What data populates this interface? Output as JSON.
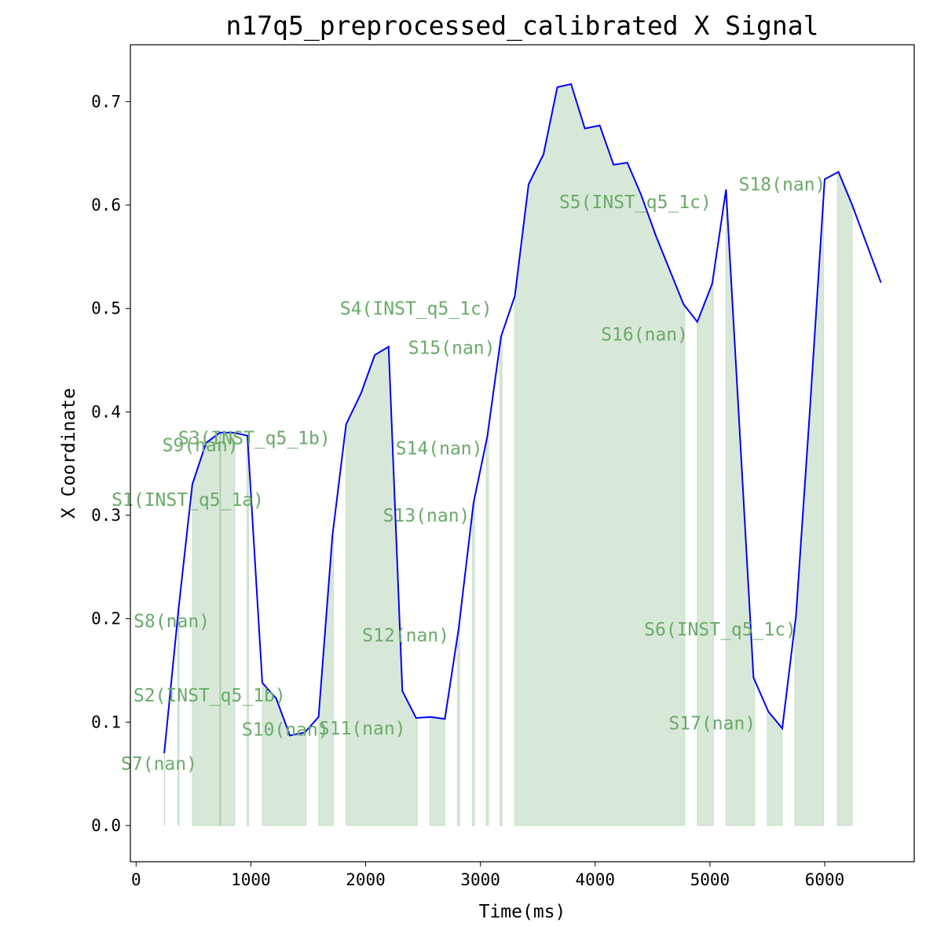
{
  "chart_data": {
    "type": "area",
    "title": "n17q5_preprocessed_calibrated X Signal",
    "xlabel": "Time(ms)",
    "ylabel": "X Coordinate",
    "xlim": [
      -50,
      6780
    ],
    "ylim": [
      -0.035,
      0.755
    ],
    "xticks": [
      0,
      1000,
      2000,
      3000,
      4000,
      5000,
      6000
    ],
    "yticks": [
      0.0,
      0.1,
      0.2,
      0.3,
      0.4,
      0.5,
      0.6,
      0.7
    ],
    "xtick_labels": [
      "0",
      "1000",
      "2000",
      "3000",
      "4000",
      "5000",
      "6000"
    ],
    "ytick_labels": [
      "0.0",
      "0.1",
      "0.2",
      "0.3",
      "0.4",
      "0.5",
      "0.6",
      "0.7"
    ],
    "line_color": "#0000ff",
    "fill_color": "#8fbc8f",
    "label_color": "#6aaa6a",
    "grid": false,
    "signal": {
      "x": [
        245,
        370,
        490,
        610,
        730,
        850,
        970,
        1100,
        1220,
        1340,
        1470,
        1590,
        1710,
        1830,
        1960,
        2080,
        2200,
        2320,
        2440,
        2570,
        2690,
        2810,
        2940,
        3060,
        3180,
        3300,
        3420,
        3550,
        3670,
        3790,
        3910,
        4040,
        4160,
        4280,
        4400,
        4530,
        4650,
        4770,
        4890,
        5020,
        5140,
        5260,
        5380,
        5510,
        5630,
        5750,
        5870,
        6000,
        6120,
        6240,
        6490
      ],
      "y": [
        0.07,
        0.21,
        0.33,
        0.37,
        0.38,
        0.38,
        0.377,
        0.138,
        0.123,
        0.087,
        0.09,
        0.105,
        0.28,
        0.388,
        0.418,
        0.455,
        0.463,
        0.13,
        0.104,
        0.105,
        0.103,
        0.19,
        0.312,
        0.376,
        0.473,
        0.512,
        0.62,
        0.649,
        0.714,
        0.717,
        0.674,
        0.677,
        0.639,
        0.641,
        0.61,
        0.57,
        0.537,
        0.504,
        0.487,
        0.524,
        0.615,
        0.38,
        0.143,
        0.11,
        0.094,
        0.203,
        0.4,
        0.625,
        0.632,
        0.6,
        0.525
      ]
    },
    "segments": [
      {
        "label": "S7(nan)",
        "start": 245,
        "end": 250,
        "label_x": 200,
        "label_y": 0.06
      },
      {
        "label": "S8(nan)",
        "start": 365,
        "end": 375,
        "label_x": 310,
        "label_y": 0.198
      },
      {
        "label": "S1(INST_q5_1a)",
        "start": 490,
        "end": 860,
        "label_x": 450,
        "label_y": 0.315
      },
      {
        "label": "S9(nan)",
        "start": 730,
        "end": 735,
        "label_x": 560,
        "label_y": 0.368
      },
      {
        "label": "S2(INST_q5_1b)",
        "start": 730,
        "end": 735,
        "label_x": 640,
        "label_y": 0.126
      },
      {
        "label": "S3(INST_q5_1b)",
        "start": 965,
        "end": 980,
        "label_x": 1030,
        "label_y": 0.375
      },
      {
        "label": "S10(nan)",
        "start": 1100,
        "end": 1480,
        "label_x": 1300,
        "label_y": 0.093
      },
      {
        "label": "S11(nan)",
        "start": 1590,
        "end": 1720,
        "label_x": 1970,
        "label_y": 0.094
      },
      {
        "label": "S4(INST_q5_1c)",
        "start": 1830,
        "end": 2450,
        "label_x": 2440,
        "label_y": 0.5
      },
      {
        "label": "S12(nan)",
        "start": 2560,
        "end": 2690,
        "label_x": 2350,
        "label_y": 0.184
      },
      {
        "label": "S13(nan)",
        "start": 2800,
        "end": 2820,
        "label_x": 2530,
        "label_y": 0.3
      },
      {
        "label": "S14(nan)",
        "start": 2930,
        "end": 2950,
        "label_x": 2640,
        "label_y": 0.365
      },
      {
        "label": "S15(nan)",
        "start": 3050,
        "end": 3070,
        "label_x": 2750,
        "label_y": 0.462
      },
      {
        "label": "S5(INST_q5_1c)",
        "start": 3170,
        "end": 3190,
        "label_x": 4350,
        "label_y": 0.603
      },
      {
        "label": "S16(nan)",
        "start": 3300,
        "end": 4780,
        "label_x": 4430,
        "label_y": 0.475
      },
      {
        "label": "S6(INST_q5_1c)",
        "start": 4890,
        "end": 5030,
        "label_x": 5090,
        "label_y": 0.19
      },
      {
        "label": "S17(nan)",
        "start": 5140,
        "end": 5390,
        "label_x": 5020,
        "label_y": 0.099
      },
      {
        "label": "S18(nan)",
        "start": 5500,
        "end": 5630,
        "label_x": 5630,
        "label_y": 0.62
      },
      {
        "label": "",
        "start": 5740,
        "end": 5990
      },
      {
        "label": "",
        "start": 6110,
        "end": 6240
      }
    ]
  }
}
